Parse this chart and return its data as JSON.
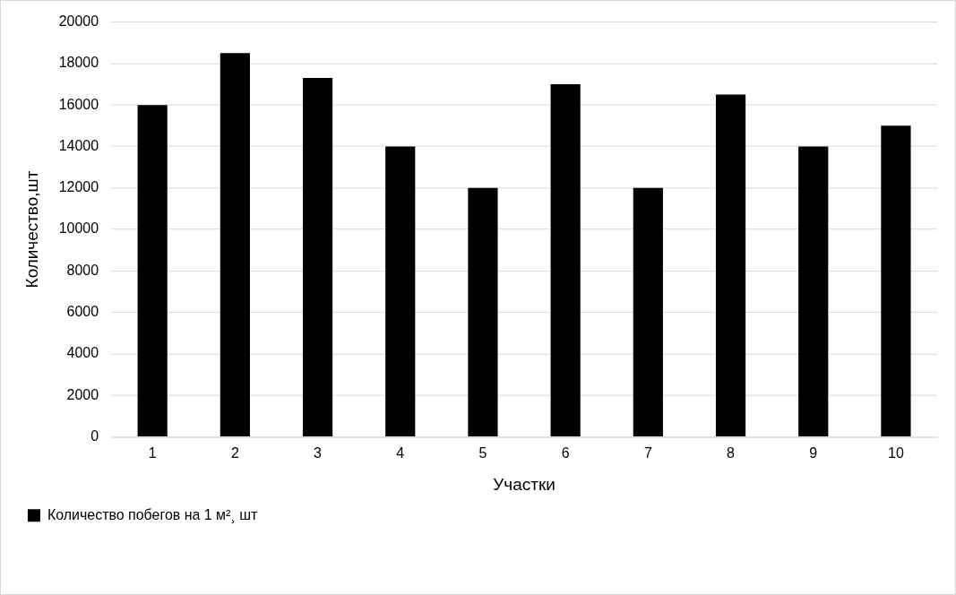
{
  "chart_data": {
    "type": "bar",
    "xlabel": "Участки",
    "ylabel": "Количество,шт",
    "categories": [
      "1",
      "2",
      "3",
      "4",
      "5",
      "6",
      "7",
      "8",
      "9",
      "10"
    ],
    "series": [
      {
        "name": "Количество побегов на 1 м²¸ шт",
        "color": "#000000",
        "values": [
          16000,
          18500,
          17300,
          14000,
          12000,
          17000,
          12000,
          16500,
          14000,
          15000
        ]
      }
    ],
    "ylim": [
      0,
      20000
    ],
    "yticks": [
      0,
      2000,
      4000,
      6000,
      8000,
      10000,
      12000,
      14000,
      16000,
      18000,
      20000
    ],
    "grid": "y",
    "legend": "bottom left"
  }
}
